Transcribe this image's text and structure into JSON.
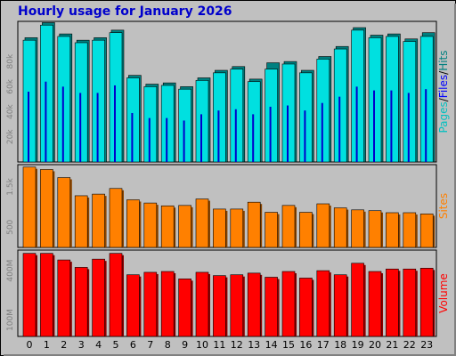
{
  "title": "Hourly usage for January 2026",
  "chart_data": [
    {
      "type": "bar",
      "name": "Pages/Files/Hits",
      "labels": [
        {
          "text": "Pages",
          "color": "#00c0c0"
        },
        {
          "text": "/",
          "color": "#000000"
        },
        {
          "text": "Files",
          "color": "#0000ff"
        },
        {
          "text": "/",
          "color": "#000000"
        },
        {
          "text": "Hits",
          "color": "#008080"
        }
      ],
      "categories": [
        "0",
        "1",
        "2",
        "3",
        "4",
        "5",
        "6",
        "7",
        "8",
        "9",
        "10",
        "11",
        "12",
        "13",
        "14",
        "15",
        "16",
        "17",
        "18",
        "19",
        "20",
        "21",
        "22",
        "23"
      ],
      "series": [
        {
          "name": "Hits",
          "color": "#008080",
          "values": [
            99000,
            111000,
            102000,
            97000,
            99000,
            105000,
            69000,
            62000,
            63000,
            60000,
            67000,
            73000,
            76000,
            66000,
            79000,
            80000,
            73000,
            84000,
            92000,
            107000,
            101000,
            102000,
            98000,
            103000
          ]
        },
        {
          "name": "Pages",
          "color": "#00e0e0",
          "values": [
            97000,
            109000,
            100000,
            95000,
            97000,
            103000,
            67000,
            60000,
            61000,
            58000,
            65000,
            71000,
            74000,
            64000,
            74000,
            78000,
            71000,
            82000,
            90000,
            105000,
            99000,
            100000,
            96000,
            100000
          ]
        },
        {
          "name": "Files",
          "color": "#0000cc",
          "values": [
            56000,
            64000,
            60000,
            55000,
            55000,
            61000,
            39000,
            35000,
            35000,
            33000,
            38000,
            41000,
            42000,
            38000,
            44000,
            45000,
            41000,
            47000,
            52000,
            60000,
            57000,
            57000,
            55000,
            58000
          ]
        }
      ],
      "yticks": [
        20000,
        40000,
        60000,
        80000
      ],
      "ytick_labels": [
        "20k",
        "40k",
        "60k",
        "80k"
      ],
      "ylim": [
        0,
        112000
      ]
    },
    {
      "type": "bar",
      "name": "Sites",
      "labels": [
        {
          "text": "Sites",
          "color": "#ff8000"
        }
      ],
      "categories": [
        "0",
        "1",
        "2",
        "3",
        "4",
        "5",
        "6",
        "7",
        "8",
        "9",
        "10",
        "11",
        "12",
        "13",
        "14",
        "15",
        "16",
        "17",
        "18",
        "19",
        "20",
        "21",
        "22",
        "23"
      ],
      "series": [
        {
          "name": "Sites",
          "color": "#ff8000",
          "values": [
            1990,
            1930,
            1730,
            1280,
            1320,
            1460,
            1180,
            1100,
            1030,
            1040,
            1200,
            950,
            950,
            1120,
            870,
            1040,
            870,
            1080,
            980,
            930,
            910,
            860,
            860,
            830
          ]
        }
      ],
      "yticks": [
        500,
        1500
      ],
      "ytick_labels": [
        "500",
        "1.5k"
      ],
      "ylim": [
        0,
        2050
      ]
    },
    {
      "type": "bar",
      "name": "Volume",
      "labels": [
        {
          "text": "Volume",
          "color": "#ff0000"
        }
      ],
      "categories": [
        "0",
        "1",
        "2",
        "3",
        "4",
        "5",
        "6",
        "7",
        "8",
        "9",
        "10",
        "11",
        "12",
        "13",
        "14",
        "15",
        "16",
        "17",
        "18",
        "19",
        "20",
        "21",
        "22",
        "23"
      ],
      "series": [
        {
          "name": "Volume",
          "color": "#ff0000",
          "values": [
            505,
            505,
            465,
            420,
            470,
            505,
            375,
            390,
            395,
            350,
            390,
            370,
            375,
            385,
            360,
            395,
            355,
            400,
            375,
            445,
            395,
            410,
            410,
            415
          ]
        }
      ],
      "yticks": [
        100,
        400
      ],
      "ytick_labels": [
        "100M",
        "400M"
      ],
      "ylim": [
        0,
        525
      ]
    }
  ]
}
